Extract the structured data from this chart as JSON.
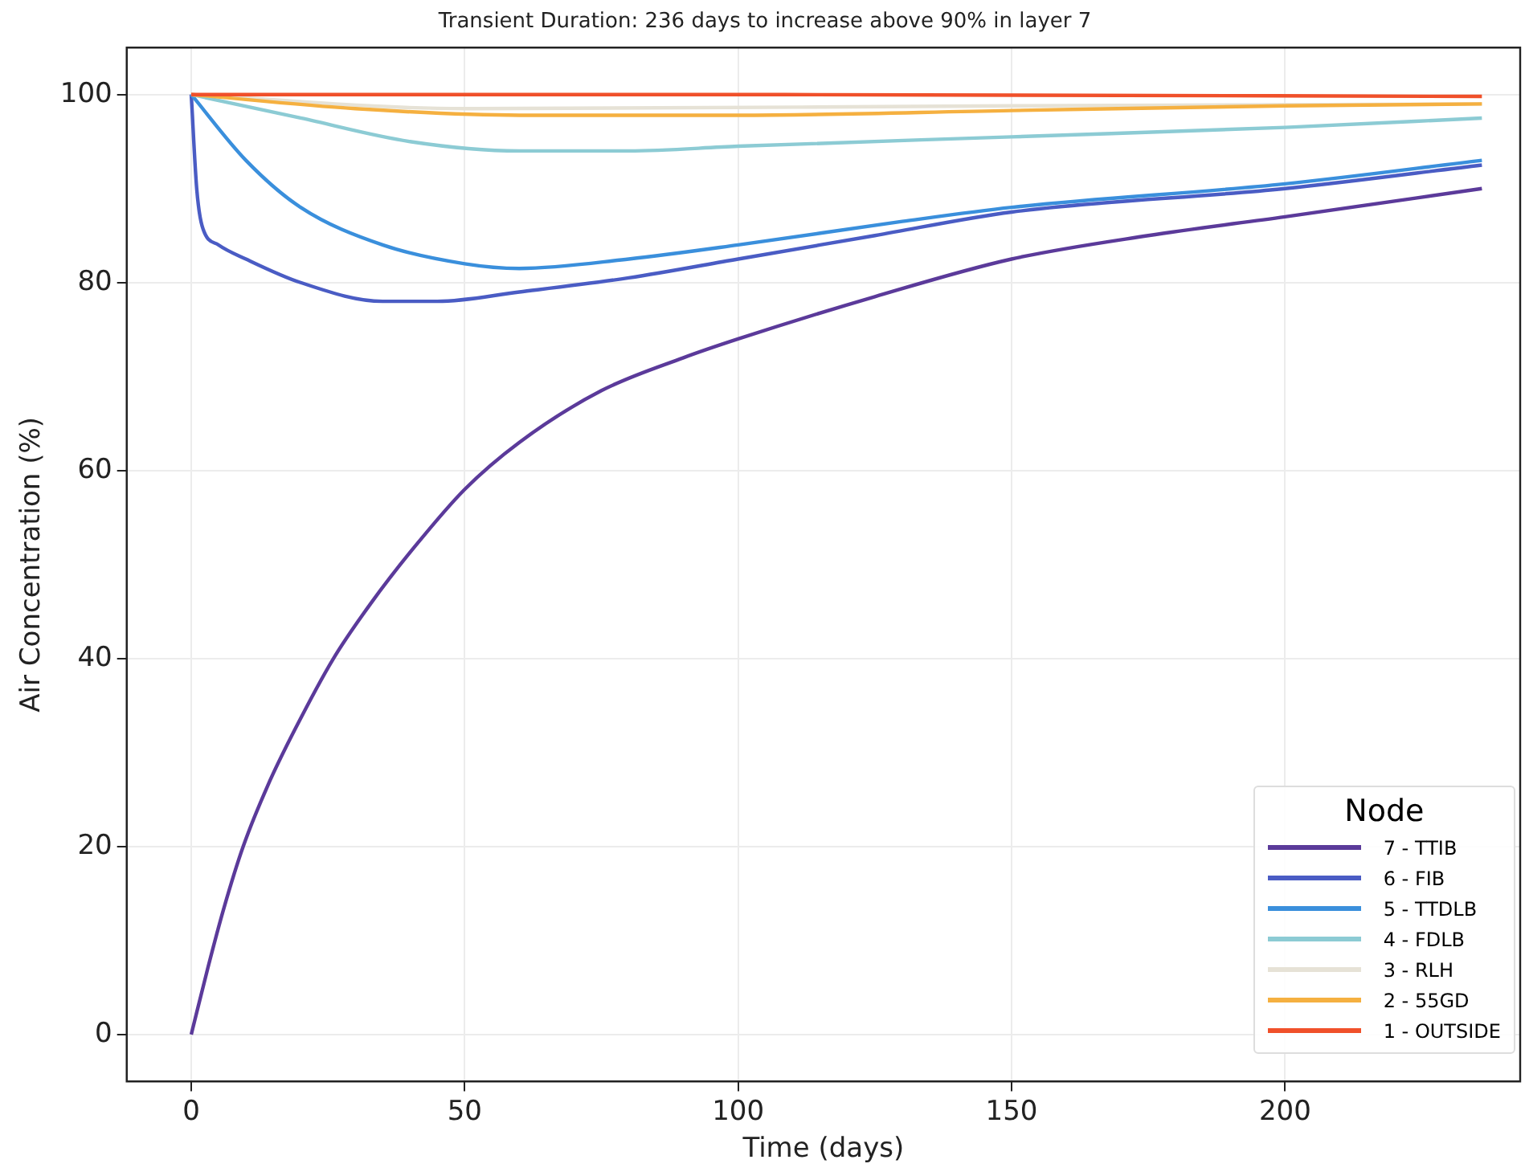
{
  "chart_data": {
    "type": "line",
    "title": "Transient Duration: 236 days to increase above 90% in layer 7",
    "xlabel": "Time (days)",
    "ylabel": "Air Concentration (%)",
    "legend_title": "Node",
    "xlim": [
      -11.8,
      243
    ],
    "ylim": [
      -5,
      105
    ],
    "xticks": [
      0,
      50,
      100,
      150,
      200
    ],
    "yticks": [
      0,
      20,
      40,
      60,
      80,
      100
    ],
    "grid": true,
    "legend": "bottom right",
    "marker": "none",
    "line_style": "solid",
    "series": [
      {
        "name": "7 - TTIB",
        "color": "#5b3a9a",
        "x": [
          0,
          3,
          6,
          9.5,
          14,
          19,
          26,
          33,
          41,
          50,
          60,
          75,
          90,
          100,
          125,
          150,
          175,
          200,
          236
        ],
        "values": [
          0,
          7,
          13.5,
          20,
          26.5,
          32.5,
          40,
          46,
          52,
          58,
          63,
          68.5,
          72,
          74,
          78.5,
          82.5,
          85,
          87,
          90
        ]
      },
      {
        "name": "6 - FIB",
        "color": "#4a5cc4",
        "x": [
          0,
          1,
          2,
          5,
          10,
          20,
          35,
          45,
          60,
          80,
          100,
          125,
          150,
          200,
          236
        ],
        "values": [
          100,
          90,
          86,
          84,
          82.5,
          80,
          78,
          78,
          79,
          80.5,
          82.5,
          85,
          87.5,
          90,
          92.5
        ]
      },
      {
        "name": "5 - TTDLB",
        "color": "#3a8fdc",
        "x": [
          0,
          10,
          20,
          35,
          50,
          60,
          80,
          100,
          130,
          150,
          200,
          236
        ],
        "values": [
          100,
          93,
          88,
          84,
          82,
          81.5,
          82.5,
          84,
          86.5,
          88,
          90.5,
          93
        ]
      },
      {
        "name": "4 - FDLB",
        "color": "#8ccbd4",
        "x": [
          0,
          20,
          40,
          60,
          80,
          100,
          150,
          200,
          236
        ],
        "values": [
          100,
          97.5,
          95,
          94,
          94,
          94.5,
          95.5,
          96.5,
          97.5
        ]
      },
      {
        "name": "3 - RLH",
        "color": "#e6e2d6",
        "x": [
          0,
          50,
          150,
          236
        ],
        "values": [
          100,
          98.5,
          98.8,
          99
        ]
      },
      {
        "name": "2 - 55GD",
        "color": "#f5b040",
        "x": [
          0,
          30,
          60,
          100,
          150,
          200,
          236
        ],
        "values": [
          100,
          98.5,
          97.8,
          97.8,
          98.3,
          98.8,
          99
        ]
      },
      {
        "name": "1 - OUTSIDE",
        "color": "#f0502a",
        "x": [
          0,
          100,
          236
        ],
        "values": [
          100,
          100,
          99.8
        ]
      }
    ]
  }
}
